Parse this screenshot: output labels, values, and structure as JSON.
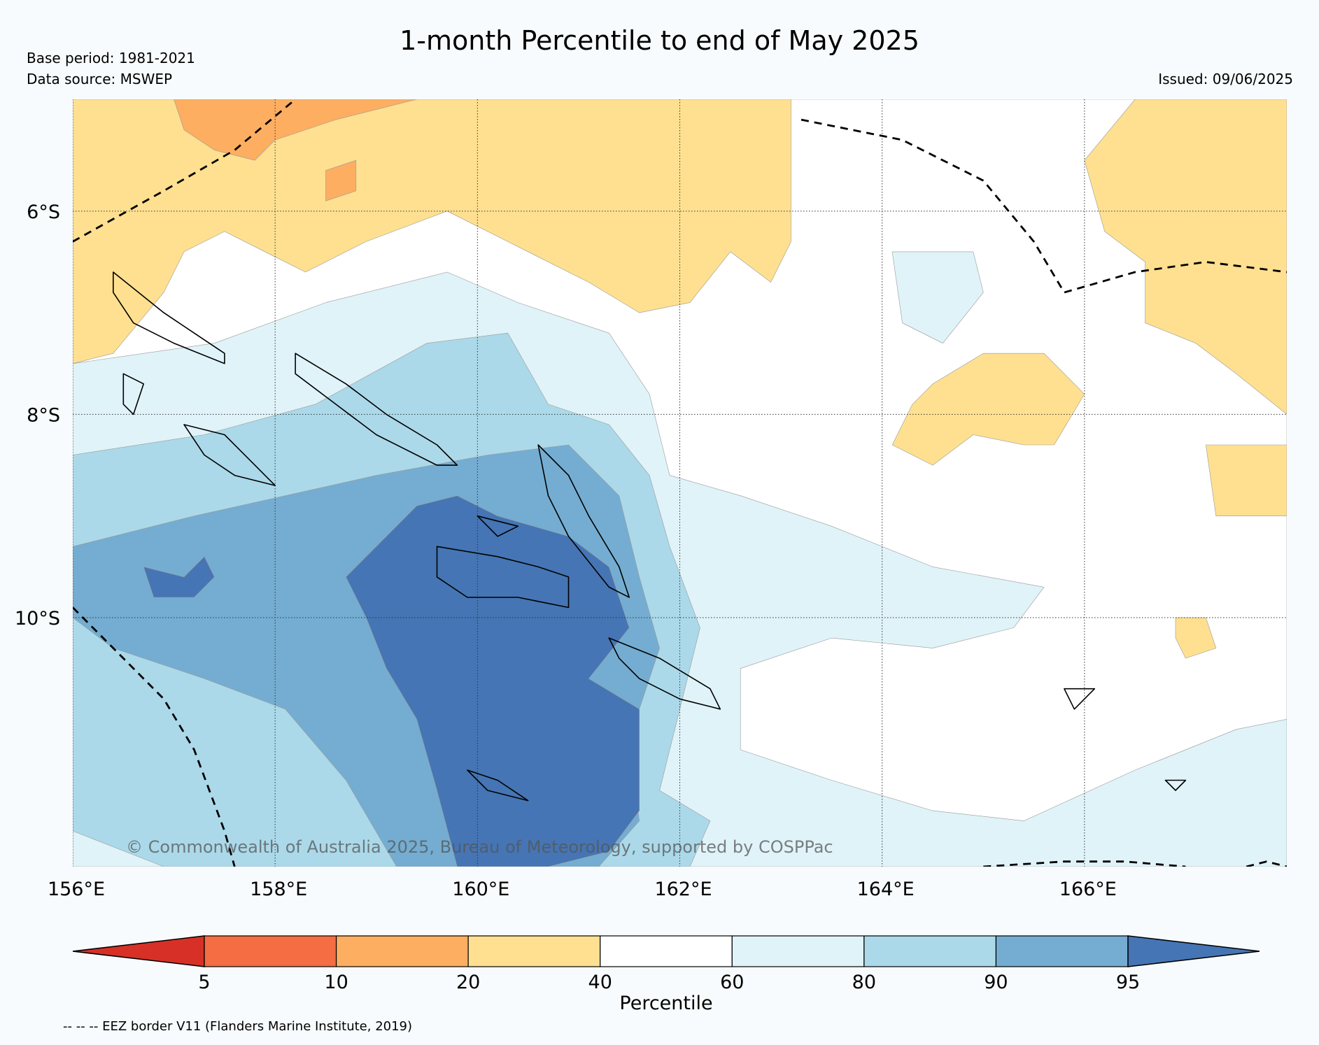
{
  "title": "1-month Percentile to end of May 2025",
  "base_period": "Base period: 1981-2021",
  "data_source": "Data source: MSWEP",
  "issued": "Issued: 09/06/2025",
  "copyright": "© Commonwealth of Australia 2025, Bureau of Meteorology, supported by COSPPac",
  "footnote": "-- -- -- EEZ border V11 (Flanders Marine Institute, 2019)",
  "map": {
    "lon_range": [
      156,
      168
    ],
    "lat_range": [
      -4.9,
      -12.45
    ],
    "x_ticks": [
      {
        "lon": 156,
        "label": "156°E"
      },
      {
        "lon": 158,
        "label": "158°E"
      },
      {
        "lon": 160,
        "label": "160°E"
      },
      {
        "lon": 162,
        "label": "162°E"
      },
      {
        "lon": 164,
        "label": "164°E"
      },
      {
        "lon": 166,
        "label": "166°E"
      }
    ],
    "y_ticks": [
      {
        "lat": -6,
        "label": "6°S"
      },
      {
        "lat": -8,
        "label": "8°S"
      },
      {
        "lat": -10,
        "label": "10°S"
      }
    ],
    "grid": true,
    "regions": [
      {
        "name": "region-40-60-background",
        "category": "40-60",
        "pts": [
          [
            156,
            -4.9
          ],
          [
            168,
            -4.9
          ],
          [
            168,
            -12.45
          ],
          [
            156,
            -12.45
          ]
        ]
      },
      {
        "name": "region-60-80-west",
        "category": "60-80",
        "pts": [
          [
            156,
            -7.5
          ],
          [
            157.4,
            -7.3
          ],
          [
            158.5,
            -6.9
          ],
          [
            159.7,
            -6.6
          ],
          [
            160.4,
            -6.9
          ],
          [
            161.3,
            -7.2
          ],
          [
            161.7,
            -7.8
          ],
          [
            161.9,
            -8.6
          ],
          [
            162.6,
            -8.8
          ],
          [
            163.5,
            -9.1
          ],
          [
            164.5,
            -9.5
          ],
          [
            165.6,
            -9.7
          ],
          [
            165.3,
            -10.1
          ],
          [
            164.5,
            -10.3
          ],
          [
            163.5,
            -10.2
          ],
          [
            162.6,
            -10.5
          ],
          [
            162.6,
            -11.3
          ],
          [
            163.5,
            -11.6
          ],
          [
            164.5,
            -11.9
          ],
          [
            165.4,
            -12.0
          ],
          [
            166.5,
            -11.5
          ],
          [
            167.5,
            -11.1
          ],
          [
            168,
            -11.0
          ],
          [
            168,
            -12.45
          ],
          [
            156,
            -12.45
          ]
        ]
      },
      {
        "name": "region-60-80-east",
        "category": "60-80",
        "pts": [
          [
            164.1,
            -6.4
          ],
          [
            164.9,
            -6.4
          ],
          [
            165.0,
            -6.8
          ],
          [
            164.6,
            -7.3
          ],
          [
            164.2,
            -7.1
          ]
        ]
      },
      {
        "name": "region-80-90-main",
        "category": "80-90",
        "pts": [
          [
            156,
            -8.4
          ],
          [
            157.3,
            -8.2
          ],
          [
            158.4,
            -7.9
          ],
          [
            159.5,
            -7.3
          ],
          [
            160.3,
            -7.2
          ],
          [
            160.7,
            -7.9
          ],
          [
            161.3,
            -8.1
          ],
          [
            161.7,
            -8.6
          ],
          [
            161.9,
            -9.3
          ],
          [
            162.2,
            -10.1
          ],
          [
            162.0,
            -10.9
          ],
          [
            161.8,
            -11.7
          ],
          [
            162.3,
            -12.0
          ],
          [
            162.1,
            -12.45
          ],
          [
            156.9,
            -12.45
          ],
          [
            156,
            -12.1
          ]
        ]
      },
      {
        "name": "region-90-95-main",
        "category": "90-95",
        "pts": [
          [
            156,
            -9.3
          ],
          [
            157.2,
            -9.0
          ],
          [
            158.1,
            -8.8
          ],
          [
            159.0,
            -8.6
          ],
          [
            160.1,
            -8.4
          ],
          [
            160.9,
            -8.3
          ],
          [
            161.4,
            -8.8
          ],
          [
            161.6,
            -9.6
          ],
          [
            161.8,
            -10.3
          ],
          [
            161.5,
            -11.2
          ],
          [
            161.6,
            -12.0
          ],
          [
            161.2,
            -12.45
          ],
          [
            159.2,
            -12.45
          ],
          [
            158.7,
            -11.6
          ],
          [
            158.1,
            -10.9
          ],
          [
            157.3,
            -10.6
          ],
          [
            156.4,
            -10.3
          ],
          [
            156,
            -10.0
          ]
        ]
      },
      {
        "name": "region-above-95-main",
        "category": ">95",
        "pts": [
          [
            158.7,
            -9.6
          ],
          [
            159.1,
            -9.2
          ],
          [
            159.4,
            -8.9
          ],
          [
            159.8,
            -8.8
          ],
          [
            160.2,
            -9.0
          ],
          [
            160.9,
            -9.2
          ],
          [
            161.3,
            -9.5
          ],
          [
            161.5,
            -10.1
          ],
          [
            161.1,
            -10.6
          ],
          [
            161.6,
            -10.9
          ],
          [
            161.6,
            -11.9
          ],
          [
            161.3,
            -12.3
          ],
          [
            160.7,
            -12.45
          ],
          [
            159.8,
            -12.45
          ],
          [
            159.6,
            -11.7
          ],
          [
            159.4,
            -11.0
          ],
          [
            159.1,
            -10.5
          ],
          [
            158.9,
            -10.0
          ]
        ]
      },
      {
        "name": "region-above-95-west",
        "category": ">95",
        "pts": [
          [
            156.7,
            -9.5
          ],
          [
            157.1,
            -9.6
          ],
          [
            157.3,
            -9.4
          ],
          [
            157.4,
            -9.6
          ],
          [
            157.2,
            -9.8
          ],
          [
            156.8,
            -9.8
          ]
        ]
      },
      {
        "name": "region-20-40-north",
        "category": "20-40",
        "pts": [
          [
            156,
            -4.9
          ],
          [
            163.1,
            -4.9
          ],
          [
            163.1,
            -6.3
          ],
          [
            162.9,
            -6.7
          ],
          [
            162.5,
            -6.4
          ],
          [
            162.1,
            -6.9
          ],
          [
            161.6,
            -7.0
          ],
          [
            161.1,
            -6.7
          ],
          [
            160.3,
            -6.3
          ],
          [
            159.7,
            -6.0
          ],
          [
            158.9,
            -6.3
          ],
          [
            158.3,
            -6.6
          ],
          [
            157.5,
            -6.2
          ],
          [
            157.1,
            -6.4
          ],
          [
            156.9,
            -6.8
          ],
          [
            156.4,
            -7.4
          ],
          [
            156,
            -7.5
          ]
        ]
      },
      {
        "name": "region-20-40-east",
        "category": "20-40",
        "pts": [
          [
            166.5,
            -4.9
          ],
          [
            168,
            -4.9
          ],
          [
            168,
            -8.0
          ],
          [
            167.5,
            -7.6
          ],
          [
            167.1,
            -7.3
          ],
          [
            166.6,
            -7.1
          ],
          [
            166.6,
            -6.5
          ],
          [
            166.2,
            -6.2
          ],
          [
            166.0,
            -5.5
          ]
        ]
      },
      {
        "name": "region-20-40-center-east",
        "category": "20-40",
        "pts": [
          [
            164.5,
            -7.7
          ],
          [
            165.0,
            -7.4
          ],
          [
            165.6,
            -7.4
          ],
          [
            166.0,
            -7.8
          ],
          [
            165.7,
            -8.3
          ],
          [
            165.4,
            -8.3
          ],
          [
            164.9,
            -8.2
          ],
          [
            164.5,
            -8.5
          ],
          [
            164.1,
            -8.3
          ],
          [
            164.3,
            -7.9
          ]
        ]
      },
      {
        "name": "region-20-40-southeast",
        "category": "20-40",
        "pts": [
          [
            167.2,
            -8.3
          ],
          [
            168,
            -8.3
          ],
          [
            168,
            -9.0
          ],
          [
            167.3,
            -9.0
          ]
        ]
      },
      {
        "name": "region-20-40-isle",
        "category": "20-40",
        "pts": [
          [
            166.9,
            -10.0
          ],
          [
            167.2,
            -10.0
          ],
          [
            167.3,
            -10.3
          ],
          [
            167.0,
            -10.4
          ],
          [
            166.9,
            -10.2
          ]
        ]
      },
      {
        "name": "region-10-20-north",
        "category": "10-20",
        "pts": [
          [
            157.0,
            -4.9
          ],
          [
            159.4,
            -4.9
          ],
          [
            158.6,
            -5.1
          ],
          [
            158.0,
            -5.3
          ],
          [
            157.8,
            -5.5
          ],
          [
            157.4,
            -5.4
          ],
          [
            157.1,
            -5.2
          ]
        ]
      },
      {
        "name": "region-10-20-blob",
        "category": "10-20",
        "pts": [
          [
            158.5,
            -5.6
          ],
          [
            158.8,
            -5.5
          ],
          [
            158.8,
            -5.8
          ],
          [
            158.5,
            -5.9
          ]
        ]
      }
    ],
    "islands": [
      {
        "name": "choiseul-island",
        "pts": [
          [
            156.4,
            -6.6
          ],
          [
            156.9,
            -7.0
          ],
          [
            157.2,
            -7.2
          ],
          [
            157.5,
            -7.4
          ],
          [
            157.5,
            -7.5
          ],
          [
            157.0,
            -7.3
          ],
          [
            156.6,
            -7.1
          ],
          [
            156.4,
            -6.8
          ]
        ]
      },
      {
        "name": "santa-isabel-island",
        "pts": [
          [
            158.2,
            -7.4
          ],
          [
            158.7,
            -7.7
          ],
          [
            159.1,
            -8.0
          ],
          [
            159.6,
            -8.3
          ],
          [
            159.8,
            -8.5
          ],
          [
            159.6,
            -8.5
          ],
          [
            159.0,
            -8.2
          ],
          [
            158.6,
            -7.9
          ],
          [
            158.2,
            -7.6
          ]
        ]
      },
      {
        "name": "new-georgia-island",
        "pts": [
          [
            157.1,
            -8.1
          ],
          [
            157.5,
            -8.2
          ],
          [
            157.8,
            -8.5
          ],
          [
            158.0,
            -8.7
          ],
          [
            157.6,
            -8.6
          ],
          [
            157.3,
            -8.4
          ]
        ]
      },
      {
        "name": "vella-lavella-island",
        "pts": [
          [
            156.5,
            -7.6
          ],
          [
            156.7,
            -7.7
          ],
          [
            156.6,
            -8.0
          ],
          [
            156.5,
            -7.9
          ]
        ]
      },
      {
        "name": "malaita-island",
        "pts": [
          [
            160.6,
            -8.3
          ],
          [
            160.9,
            -8.6
          ],
          [
            161.1,
            -9.0
          ],
          [
            161.4,
            -9.5
          ],
          [
            161.5,
            -9.8
          ],
          [
            161.3,
            -9.7
          ],
          [
            160.9,
            -9.2
          ],
          [
            160.7,
            -8.8
          ]
        ]
      },
      {
        "name": "guadalcanal-island",
        "pts": [
          [
            159.6,
            -9.3
          ],
          [
            160.2,
            -9.4
          ],
          [
            160.6,
            -9.5
          ],
          [
            160.9,
            -9.6
          ],
          [
            160.9,
            -9.9
          ],
          [
            160.4,
            -9.8
          ],
          [
            159.9,
            -9.8
          ],
          [
            159.6,
            -9.6
          ]
        ]
      },
      {
        "name": "makira-island",
        "pts": [
          [
            161.3,
            -10.2
          ],
          [
            161.8,
            -10.4
          ],
          [
            162.3,
            -10.7
          ],
          [
            162.4,
            -10.9
          ],
          [
            162.0,
            -10.8
          ],
          [
            161.6,
            -10.6
          ],
          [
            161.4,
            -10.4
          ]
        ]
      },
      {
        "name": "rennell-island",
        "pts": [
          [
            159.9,
            -11.5
          ],
          [
            160.2,
            -11.6
          ],
          [
            160.5,
            -11.8
          ],
          [
            160.1,
            -11.7
          ]
        ]
      },
      {
        "name": "florida-islands",
        "pts": [
          [
            160.0,
            -9.0
          ],
          [
            160.4,
            -9.1
          ],
          [
            160.2,
            -9.2
          ]
        ]
      },
      {
        "name": "santa-cruz-island",
        "pts": [
          [
            165.8,
            -10.7
          ],
          [
            166.1,
            -10.7
          ],
          [
            165.9,
            -10.9
          ]
        ]
      },
      {
        "name": "vanikoro-island",
        "pts": [
          [
            166.8,
            -11.6
          ],
          [
            167.0,
            -11.6
          ],
          [
            166.9,
            -11.7
          ]
        ]
      }
    ],
    "eez_borders": [
      {
        "name": "eez-border-northwest",
        "pts": [
          [
            156.0,
            -6.3
          ],
          [
            156.9,
            -5.8
          ],
          [
            157.6,
            -5.4
          ],
          [
            158.2,
            -4.9
          ]
        ]
      },
      {
        "name": "eez-border-southwest",
        "pts": [
          [
            156.0,
            -9.9
          ],
          [
            156.4,
            -10.3
          ],
          [
            156.9,
            -10.8
          ],
          [
            157.2,
            -11.3
          ],
          [
            157.5,
            -12.1
          ],
          [
            157.6,
            -12.45
          ]
        ]
      },
      {
        "name": "eez-border-northeast",
        "pts": [
          [
            163.2,
            -5.1
          ],
          [
            164.2,
            -5.3
          ],
          [
            165.0,
            -5.7
          ],
          [
            165.5,
            -6.3
          ],
          [
            165.8,
            -6.8
          ],
          [
            166.5,
            -6.6
          ],
          [
            167.2,
            -6.5
          ],
          [
            168.0,
            -6.6
          ]
        ]
      },
      {
        "name": "eez-border-southeast",
        "pts": [
          [
            165.0,
            -12.45
          ],
          [
            165.8,
            -12.4
          ],
          [
            166.4,
            -12.4
          ],
          [
            167.0,
            -12.45
          ]
        ]
      },
      {
        "name": "eez-border-south-corner",
        "pts": [
          [
            167.6,
            -12.45
          ],
          [
            167.8,
            -12.4
          ],
          [
            168.0,
            -12.45
          ]
        ]
      }
    ]
  },
  "colorbar": {
    "label": "Percentile",
    "categories": [
      {
        "range": "<5",
        "color": "#d73027"
      },
      {
        "range": "5-10",
        "color": "#f46d43"
      },
      {
        "range": "10-20",
        "color": "#fdae61"
      },
      {
        "range": "20-40",
        "color": "#fee090"
      },
      {
        "range": "40-60",
        "color": "#ffffff"
      },
      {
        "range": "60-80",
        "color": "#e0f3f8"
      },
      {
        "range": "80-90",
        "color": "#abd9e9"
      },
      {
        "range": "90-95",
        "color": "#74add1"
      },
      {
        "range": ">95",
        "color": "#4575b4"
      }
    ],
    "ticks": [
      "5",
      "10",
      "20",
      "40",
      "60",
      "80",
      "90",
      "95"
    ]
  }
}
